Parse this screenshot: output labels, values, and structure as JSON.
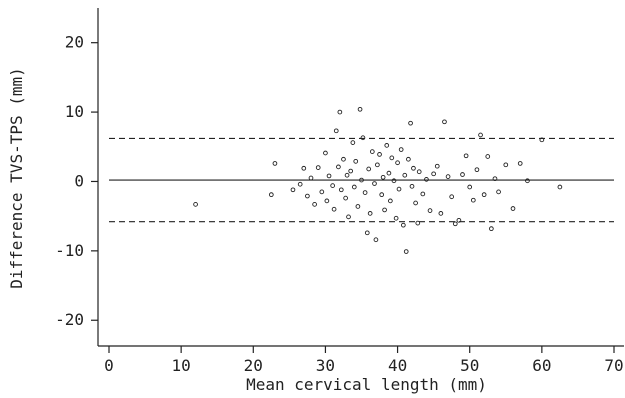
{
  "chart_data": {
    "type": "scatter",
    "title": "",
    "xlabel": "Mean cervical length (mm)",
    "ylabel": "Difference TVS-TPS (mm)",
    "xlim": [
      0,
      70
    ],
    "ylim": [
      -24,
      25
    ],
    "xticks": [
      0,
      10,
      20,
      30,
      40,
      50,
      60,
      70
    ],
    "yticks": [
      -20,
      -10,
      0,
      10,
      20
    ],
    "grid": false,
    "reference_lines": {
      "mean": 0.2,
      "upper_limit": 6.2,
      "lower_limit": -5.8
    },
    "series": [
      {
        "marker": "open-circle",
        "points": [
          [
            12.0,
            -3.3
          ],
          [
            22.5,
            -1.9
          ],
          [
            23.0,
            2.6
          ],
          [
            25.5,
            -1.2
          ],
          [
            26.5,
            -0.4
          ],
          [
            27.0,
            1.9
          ],
          [
            27.5,
            -2.1
          ],
          [
            28.0,
            0.5
          ],
          [
            28.5,
            -3.3
          ],
          [
            29.0,
            2.0
          ],
          [
            29.5,
            -1.5
          ],
          [
            30.0,
            4.1
          ],
          [
            30.2,
            -2.8
          ],
          [
            30.5,
            0.8
          ],
          [
            31.0,
            -0.6
          ],
          [
            31.2,
            -4.0
          ],
          [
            31.5,
            7.3
          ],
          [
            31.8,
            2.1
          ],
          [
            32.0,
            10.0
          ],
          [
            32.2,
            -1.2
          ],
          [
            32.5,
            3.2
          ],
          [
            32.8,
            -2.4
          ],
          [
            33.0,
            0.9
          ],
          [
            33.2,
            -5.1
          ],
          [
            33.5,
            1.5
          ],
          [
            33.8,
            5.6
          ],
          [
            34.0,
            -0.8
          ],
          [
            34.2,
            2.9
          ],
          [
            34.5,
            -3.6
          ],
          [
            34.8,
            10.4
          ],
          [
            35.0,
            0.2
          ],
          [
            35.2,
            6.3
          ],
          [
            35.5,
            -1.6
          ],
          [
            35.8,
            -7.4
          ],
          [
            36.0,
            1.8
          ],
          [
            36.2,
            -4.6
          ],
          [
            36.5,
            4.3
          ],
          [
            36.8,
            -0.3
          ],
          [
            37.0,
            -8.4
          ],
          [
            37.2,
            2.4
          ],
          [
            37.5,
            3.9
          ],
          [
            37.8,
            -1.9
          ],
          [
            38.0,
            0.6
          ],
          [
            38.2,
            -4.1
          ],
          [
            38.5,
            5.2
          ],
          [
            38.8,
            1.2
          ],
          [
            39.0,
            -2.8
          ],
          [
            39.2,
            3.4
          ],
          [
            39.5,
            0.1
          ],
          [
            39.8,
            -5.3
          ],
          [
            40.0,
            2.7
          ],
          [
            40.2,
            -1.1
          ],
          [
            40.5,
            4.6
          ],
          [
            40.8,
            -6.3
          ],
          [
            41.0,
            0.9
          ],
          [
            41.2,
            -10.1
          ],
          [
            41.5,
            3.2
          ],
          [
            41.8,
            8.4
          ],
          [
            42.0,
            -0.7
          ],
          [
            42.2,
            1.9
          ],
          [
            42.5,
            -3.1
          ],
          [
            42.8,
            -6.0
          ],
          [
            43.0,
            1.4
          ],
          [
            43.5,
            -1.8
          ],
          [
            44.0,
            0.3
          ],
          [
            44.5,
            -4.2
          ],
          [
            45.0,
            1.1
          ],
          [
            45.5,
            2.2
          ],
          [
            46.0,
            -4.6
          ],
          [
            46.5,
            8.6
          ],
          [
            47.0,
            0.7
          ],
          [
            47.5,
            -2.2
          ],
          [
            48.0,
            -6.1
          ],
          [
            48.5,
            -5.6
          ],
          [
            49.0,
            1.0
          ],
          [
            49.5,
            3.7
          ],
          [
            50.0,
            -0.8
          ],
          [
            50.5,
            -2.7
          ],
          [
            51.0,
            1.7
          ],
          [
            51.5,
            6.7
          ],
          [
            52.0,
            -1.9
          ],
          [
            52.5,
            3.6
          ],
          [
            53.0,
            -6.8
          ],
          [
            53.5,
            0.4
          ],
          [
            54.0,
            -1.5
          ],
          [
            55.0,
            2.4
          ],
          [
            56.0,
            -3.9
          ],
          [
            57.0,
            2.6
          ],
          [
            58.0,
            0.1
          ],
          [
            60.0,
            6.0
          ],
          [
            62.5,
            -0.8
          ]
        ]
      }
    ]
  }
}
